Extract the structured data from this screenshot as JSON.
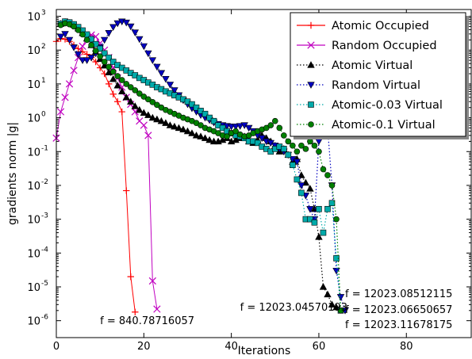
{
  "chart_data": {
    "type": "line",
    "title": "",
    "xlabel": "Iterations",
    "ylabel": "gradients norm |g|",
    "xlim": [
      0,
      95
    ],
    "ylim_log10": [
      -6.5,
      3.2
    ],
    "log_y": true,
    "grid": false,
    "legend_placement": "top-right",
    "x_ticks": [
      {
        "value": 0,
        "label": "0"
      },
      {
        "value": 20,
        "label": "20"
      },
      {
        "value": 40,
        "label": "40"
      },
      {
        "value": 60,
        "label": "60"
      },
      {
        "value": 80,
        "label": "80"
      }
    ],
    "y_ticks": [
      {
        "value": 3,
        "label": "10",
        "exp": "3"
      },
      {
        "value": 2,
        "label": "10",
        "exp": "2"
      },
      {
        "value": 1,
        "label": "10",
        "exp": "1"
      },
      {
        "value": 0,
        "label": "10",
        "exp": "0"
      },
      {
        "value": -1,
        "label": "10",
        "exp": "-1"
      },
      {
        "value": -2,
        "label": "10",
        "exp": "-2"
      },
      {
        "value": -3,
        "label": "10",
        "exp": "-3"
      },
      {
        "value": -4,
        "label": "10",
        "exp": "-4"
      },
      {
        "value": -5,
        "label": "10",
        "exp": "-5"
      },
      {
        "value": -6,
        "label": "10",
        "exp": "-6"
      }
    ],
    "series": [
      {
        "name": "Atomic Occupied",
        "color": "#ff0000",
        "marker": "plus",
        "dash": "solid",
        "x": [
          0,
          1,
          2,
          3,
          4,
          5,
          6,
          7,
          8,
          9,
          10,
          11,
          12,
          13,
          14,
          15,
          16,
          17,
          18
        ],
        "y": [
          180,
          220,
          210,
          180,
          140,
          110,
          90,
          75,
          60,
          45,
          30,
          20,
          10,
          5,
          3,
          1.5,
          0.007,
          2e-05,
          1.8e-06
        ]
      },
      {
        "name": "Random Occupied",
        "color": "#c000c0",
        "marker": "x",
        "dash": "solid",
        "x": [
          0,
          1,
          2,
          3,
          4,
          5,
          6,
          7,
          8,
          9,
          10,
          11,
          12,
          13,
          14,
          15,
          16,
          17,
          18,
          19,
          20,
          21,
          22,
          23
        ],
        "y": [
          0.25,
          1.5,
          4,
          10,
          25,
          60,
          130,
          230,
          280,
          250,
          160,
          100,
          60,
          30,
          15,
          8,
          4,
          2.5,
          1.5,
          0.8,
          0.6,
          0.3,
          1.5e-05,
          2.2e-06
        ]
      },
      {
        "name": "Atomic Virtual",
        "color": "#000000",
        "marker": "triangle-up",
        "dash": "dotted",
        "x": [
          1,
          2,
          3,
          4,
          5,
          6,
          7,
          8,
          9,
          10,
          11,
          12,
          13,
          14,
          15,
          16,
          17,
          18,
          19,
          20,
          21,
          22,
          23,
          24,
          25,
          26,
          27,
          28,
          29,
          30,
          31,
          32,
          33,
          34,
          35,
          36,
          37,
          38,
          39,
          40,
          41,
          42,
          43,
          44,
          45,
          46,
          47,
          48,
          49,
          50,
          51,
          52,
          53,
          54,
          55,
          56,
          57,
          58,
          59,
          60,
          61,
          62,
          63,
          64
        ],
        "y": [
          600,
          680,
          640,
          560,
          440,
          320,
          220,
          140,
          90,
          55,
          35,
          22,
          14,
          9,
          6,
          4,
          3,
          2.2,
          1.7,
          1.4,
          1.2,
          1.0,
          0.9,
          0.8,
          0.7,
          0.6,
          0.55,
          0.5,
          0.45,
          0.4,
          0.35,
          0.3,
          0.28,
          0.25,
          0.22,
          0.2,
          0.2,
          0.22,
          0.25,
          0.2,
          0.22,
          0.25,
          0.28,
          0.2,
          0.18,
          0.22,
          0.3,
          0.25,
          0.2,
          0.15,
          0.1,
          0.12,
          0.08,
          0.05,
          0.06,
          0.02,
          0.012,
          0.008,
          0.002,
          0.0003,
          1e-05,
          6e-06,
          3e-06,
          2.5e-06
        ]
      },
      {
        "name": "Random Virtual",
        "color": "#0000c0",
        "marker": "triangle-down",
        "dash": "dotted",
        "x": [
          1,
          2,
          3,
          4,
          5,
          6,
          7,
          8,
          9,
          10,
          11,
          12,
          13,
          14,
          15,
          16,
          17,
          18,
          19,
          20,
          21,
          22,
          23,
          24,
          25,
          26,
          27,
          28,
          29,
          30,
          31,
          32,
          33,
          34,
          35,
          36,
          37,
          38,
          39,
          40,
          41,
          42,
          43,
          44,
          45,
          46,
          47,
          48,
          49,
          50,
          51,
          52,
          53,
          54,
          55,
          56,
          57,
          58,
          59,
          60,
          61,
          62,
          63,
          64,
          65,
          66
        ],
        "y": [
          250,
          300,
          200,
          120,
          75,
          50,
          50,
          60,
          80,
          120,
          200,
          320,
          480,
          620,
          700,
          650,
          500,
          330,
          210,
          130,
          80,
          50,
          32,
          21,
          14,
          9.5,
          6.5,
          4.6,
          3.3,
          2.5,
          1.9,
          1.5,
          1.2,
          1.0,
          0.85,
          0.72,
          0.65,
          0.6,
          0.57,
          0.55,
          0.55,
          0.57,
          0.6,
          0.5,
          0.4,
          0.3,
          0.25,
          0.2,
          0.18,
          0.15,
          0.12,
          0.1,
          0.08,
          0.06,
          0.05,
          0.01,
          0.005,
          0.002,
          0.001,
          0.2,
          0.4,
          0.5,
          0.01,
          3e-05,
          5e-06,
          2e-06
        ]
      },
      {
        "name": "Atomic-0.03 Virtual",
        "color": "#00aaaa",
        "marker": "square",
        "dash": "dotted",
        "x": [
          1,
          2,
          3,
          4,
          5,
          6,
          7,
          8,
          9,
          10,
          11,
          12,
          13,
          14,
          15,
          16,
          17,
          18,
          19,
          20,
          21,
          22,
          23,
          24,
          25,
          26,
          27,
          28,
          29,
          30,
          31,
          32,
          33,
          34,
          35,
          36,
          37,
          38,
          39,
          40,
          41,
          42,
          43,
          44,
          45,
          46,
          47,
          48,
          49,
          50,
          51,
          52,
          53,
          54,
          55,
          56,
          57,
          58,
          59,
          60,
          61,
          62,
          63,
          64,
          65
        ],
        "y": [
          600,
          700,
          660,
          580,
          480,
          380,
          290,
          210,
          150,
          110,
          80,
          60,
          45,
          36,
          30,
          25,
          21,
          18,
          15,
          13,
          11,
          9.5,
          8,
          7,
          6,
          5.3,
          4.6,
          4,
          3.5,
          3,
          2.5,
          2,
          1.6,
          1.3,
          1,
          0.8,
          0.6,
          0.5,
          0.4,
          0.35,
          0.3,
          0.28,
          0.25,
          0.2,
          0.2,
          0.18,
          0.14,
          0.12,
          0.1,
          0.12,
          0.14,
          0.12,
          0.08,
          0.04,
          0.015,
          0.006,
          0.001,
          0.001,
          0.0008,
          0.002,
          0.0004,
          0.002,
          0.003,
          7e-05,
          2e-06
        ]
      },
      {
        "name": "Atomic-0.1 Virtual",
        "color": "#008000",
        "marker": "circle",
        "dash": "dotted",
        "x": [
          1,
          2,
          3,
          4,
          5,
          6,
          7,
          8,
          9,
          10,
          11,
          12,
          13,
          14,
          15,
          16,
          17,
          18,
          19,
          20,
          21,
          22,
          23,
          24,
          25,
          26,
          27,
          28,
          29,
          30,
          31,
          32,
          33,
          34,
          35,
          36,
          37,
          38,
          39,
          40,
          41,
          42,
          43,
          44,
          45,
          46,
          47,
          48,
          49,
          50,
          51,
          52,
          53,
          54,
          55,
          56,
          57,
          58,
          59,
          60,
          61,
          62,
          63,
          64,
          65
        ],
        "y": [
          550,
          620,
          580,
          500,
          390,
          290,
          200,
          140,
          95,
          65,
          45,
          32,
          23,
          17,
          13,
          10,
          8,
          6.5,
          5.2,
          4.2,
          3.5,
          2.9,
          2.4,
          2,
          1.7,
          1.5,
          1.3,
          1.15,
          1,
          0.9,
          0.8,
          0.7,
          0.6,
          0.5,
          0.45,
          0.4,
          0.35,
          0.3,
          0.28,
          0.35,
          0.4,
          0.32,
          0.28,
          0.3,
          0.35,
          0.4,
          0.45,
          0.5,
          0.6,
          0.8,
          0.5,
          0.3,
          0.2,
          0.15,
          0.1,
          0.15,
          0.12,
          0.2,
          0.15,
          0.1,
          0.03,
          0.02,
          0.01,
          0.001,
          2e-06
        ]
      }
    ],
    "annotations": [
      {
        "text": "f = 840.78716057",
        "x": 10,
        "y": 8e-07
      },
      {
        "text": "f = 12023.04570193",
        "x": 42,
        "y": 2e-06
      },
      {
        "text": "f = 12023.08512115",
        "x": 66,
        "y": 5e-06
      },
      {
        "text": "f = 12023.06650657",
        "x": 66,
        "y": 1.7e-06
      },
      {
        "text": "f = 12023.11678175",
        "x": 66,
        "y": 6e-07
      }
    ]
  }
}
